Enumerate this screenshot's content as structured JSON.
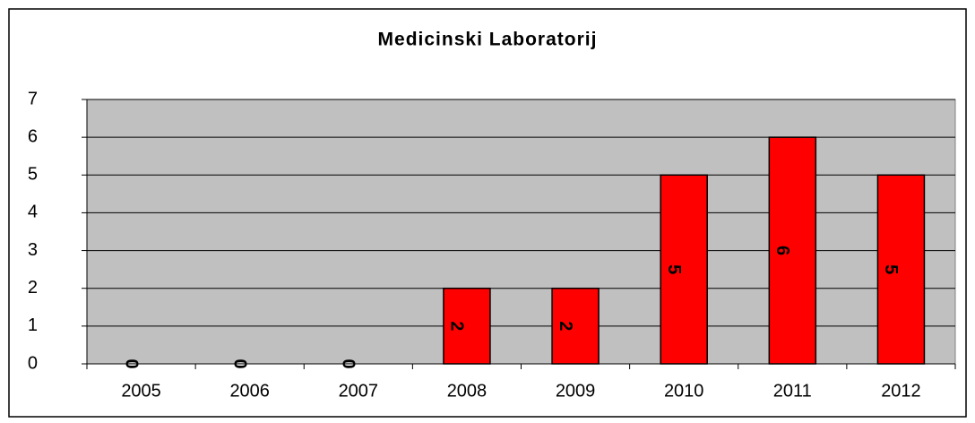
{
  "chart_data": {
    "type": "bar",
    "title": "Medicinski Laboratorij",
    "categories": [
      "2005",
      "2006",
      "2007",
      "2008",
      "2009",
      "2010",
      "2011",
      "2012"
    ],
    "values": [
      0,
      0,
      0,
      2,
      2,
      5,
      6,
      5
    ],
    "color": "#ff0000",
    "ylim": [
      0,
      7
    ],
    "yticks": [
      0,
      1,
      2,
      3,
      4,
      5,
      6,
      7
    ],
    "grid": true
  }
}
